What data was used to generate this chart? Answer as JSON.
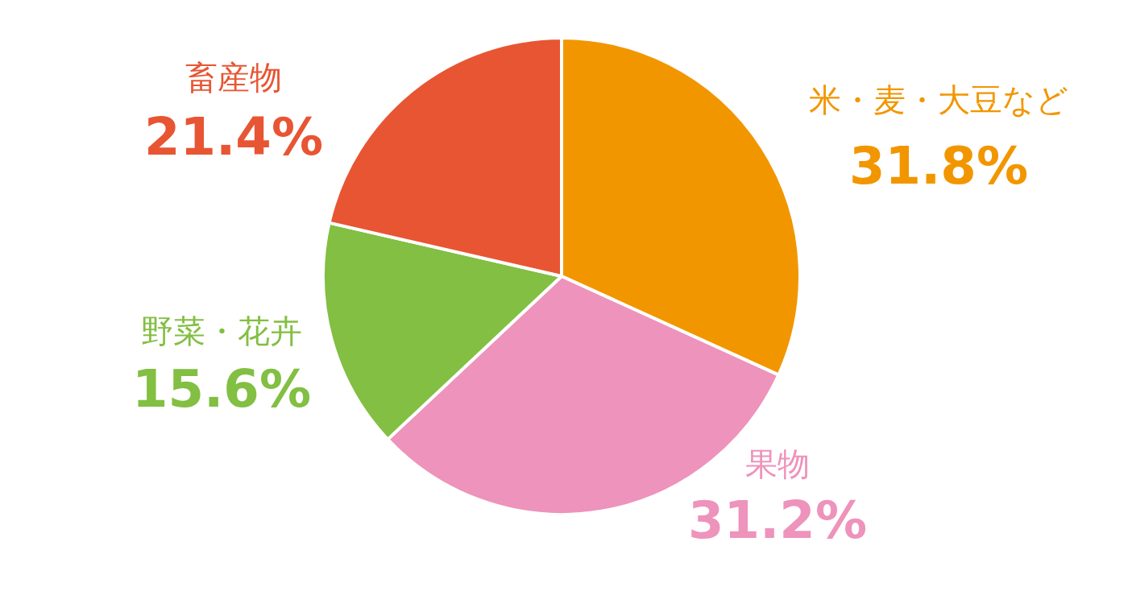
{
  "chart_data": {
    "type": "pie",
    "categories": [
      "米・麦・大豆など",
      "果物",
      "野菜・花卉",
      "畜産物"
    ],
    "values": [
      31.8,
      31.2,
      15.6,
      21.4
    ],
    "value_labels": [
      "31.8%",
      "31.2%",
      "15.6%",
      "21.4%"
    ],
    "colors": [
      "#f29600",
      "#ee93bb",
      "#82bf42",
      "#e85533"
    ]
  }
}
